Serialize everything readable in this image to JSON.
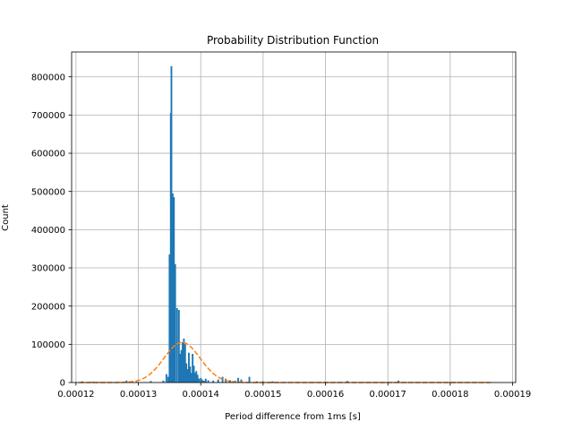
{
  "chart_data": {
    "type": "bar",
    "title": "Probability Distribution Function",
    "xlabel": "Period difference from 1ms [s]",
    "ylabel": "Count",
    "xlim": [
      0.0001193,
      0.0001905
    ],
    "ylim": [
      0,
      865000
    ],
    "grid": true,
    "xticks": [
      0.00012,
      0.00013,
      0.00014,
      0.00015,
      0.00016,
      0.00017,
      0.00018,
      0.00019
    ],
    "xtick_labels": [
      "0.00012",
      "0.00013",
      "0.00014",
      "0.00015",
      "0.00016",
      "0.00017",
      "0.00018",
      "0.00019"
    ],
    "yticks": [
      0,
      100000,
      200000,
      300000,
      400000,
      500000,
      600000,
      700000,
      800000
    ],
    "ytick_labels": [
      "0",
      "100000",
      "200000",
      "300000",
      "400000",
      "500000",
      "600000",
      "700000",
      "800000"
    ],
    "bar_color": "#1f77b4",
    "fit_color": "#ff7f0e",
    "series": [
      {
        "kind": "histogram",
        "x": [
          0.000121,
          0.0001227,
          0.0001281,
          0.0001297,
          0.000132,
          0.000134,
          0.0001345,
          0.0001348,
          0.000135,
          0.0001352,
          0.0001353,
          0.0001355,
          0.0001357,
          0.0001359,
          0.0001362,
          0.0001365,
          0.0001367,
          0.0001369,
          0.0001371,
          0.0001373,
          0.0001375,
          0.0001377,
          0.0001379,
          0.0001381,
          0.0001383,
          0.0001385,
          0.0001387,
          0.0001389,
          0.0001391,
          0.0001393,
          0.0001395,
          0.0001397,
          0.00014,
          0.0001402,
          0.0001405,
          0.0001408,
          0.0001412,
          0.000142,
          0.0001428,
          0.0001435,
          0.000144,
          0.0001447,
          0.0001455,
          0.000146,
          0.0001465,
          0.0001478,
          0.000149,
          0.00015,
          0.0001515,
          0.0001635,
          0.0001717
        ],
        "values": [
          3000,
          2000,
          5000,
          2000,
          4000,
          5000,
          22000,
          15000,
          335000,
          705000,
          828000,
          495000,
          485000,
          310000,
          195000,
          190000,
          75000,
          85000,
          105000,
          115000,
          100000,
          50000,
          35000,
          78000,
          42000,
          25000,
          75000,
          44000,
          25000,
          30000,
          20000,
          10000,
          12000,
          8000,
          5000,
          10000,
          6000,
          5000,
          8000,
          15000,
          10000,
          6000,
          5000,
          12000,
          8000,
          15000,
          3000,
          3000,
          3000,
          4000,
          5000
        ]
      },
      {
        "kind": "fit",
        "style": "dashed",
        "mean": 0.000137,
        "std": 2.9e-06,
        "peak": 105000
      }
    ]
  }
}
